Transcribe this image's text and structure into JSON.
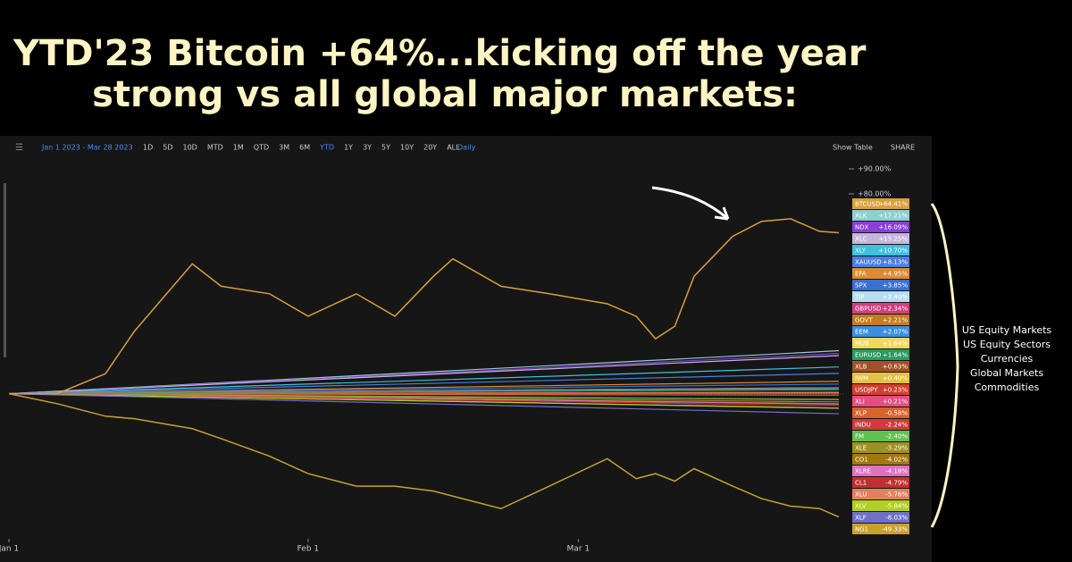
{
  "header": {
    "title_line1": "YTD'23 Bitcoin +64%...kicking off the year",
    "title_line2": "strong vs all global major markets:"
  },
  "toolbar": {
    "range": "Jan 1 2023 - Mar 28 2023",
    "periods": [
      "1D",
      "5D",
      "10D",
      "MTD",
      "1M",
      "QTD",
      "3M",
      "6M",
      "YTD",
      "1Y",
      "3Y",
      "5Y",
      "10Y",
      "20Y",
      "ALL"
    ],
    "interval": "Daily",
    "show_table": "Show Table",
    "share": "SHARE"
  },
  "groups": [
    "US Equity Markets",
    "US Equity Sectors",
    "Currencies",
    "Global Markets",
    "Commodities"
  ],
  "chart_data": {
    "type": "line",
    "legend": "right",
    "x": [
      0,
      5,
      10,
      13,
      19,
      22,
      27,
      31,
      36,
      40,
      44,
      46,
      51,
      56,
      62,
      65,
      67,
      69,
      71,
      75,
      78,
      81,
      84,
      86
    ],
    "xlim": [
      0,
      86
    ],
    "xticks": [
      {
        "value": 0,
        "label": "Jan 1"
      },
      {
        "value": 31,
        "label": "Feb 1"
      },
      {
        "value": 59,
        "label": "Mar 1"
      }
    ],
    "ylim": [
      -57,
      95
    ],
    "yticks": [
      {
        "value": 80,
        "label": "+80.00%"
      },
      {
        "value": 90,
        "label": "+90.00%"
      }
    ],
    "series": [
      {
        "name": "BTCUSD",
        "color": "#d9a038",
        "value": 64.41,
        "value_label": "+64.41%",
        "values": [
          0,
          0,
          8,
          25,
          52,
          43,
          40,
          31,
          40,
          31,
          47,
          54,
          43,
          40,
          36,
          31,
          22,
          27,
          47,
          63,
          69,
          70,
          65,
          64.41
        ]
      },
      {
        "name": "XLK",
        "color": "#8ecfd0",
        "value": 17.21,
        "value_label": "+17.21%"
      },
      {
        "name": "NDX",
        "color": "#8a3fd6",
        "value": 16.09,
        "value_label": "+16.09%"
      },
      {
        "name": "XLC",
        "color": "#c6b4e0",
        "value": 15.25,
        "value_label": "+15.25%"
      },
      {
        "name": "XLY",
        "color": "#3fc0e0",
        "value": 10.7,
        "value_label": "+10.70%"
      },
      {
        "name": "XAUUSD",
        "color": "#4a7fe0",
        "value": 8.13,
        "value_label": "+8.13%"
      },
      {
        "name": "EFA",
        "color": "#e08a30",
        "value": 4.95,
        "value_label": "+4.95%"
      },
      {
        "name": "SPX",
        "color": "#3a70d0",
        "value": 3.85,
        "value_label": "+3.85%"
      },
      {
        "name": "TIP",
        "color": "#b8dcf0",
        "value": 2.4,
        "value_label": "+2.40%"
      },
      {
        "name": "GBPUSD",
        "color": "#d04080",
        "value": 2.34,
        "value_label": "+2.34%"
      },
      {
        "name": "GOVT",
        "color": "#c87a20",
        "value": 2.21,
        "value_label": "+2.21%"
      },
      {
        "name": "EEM",
        "color": "#3a90e0",
        "value": 2.07,
        "value_label": "+2.07%"
      },
      {
        "name": "MUB",
        "color": "#f0d860",
        "value": 1.64,
        "value_label": "+1.64%"
      },
      {
        "name": "EURUSD",
        "color": "#2a9a60",
        "value": 1.64,
        "value_label": "+1.64%"
      },
      {
        "name": "XLB",
        "color": "#a0502a",
        "value": 0.63,
        "value_label": "+0.63%"
      },
      {
        "name": "IWM",
        "color": "#e8c040",
        "value": 0.4,
        "value_label": "+0.40%"
      },
      {
        "name": "USDJPY",
        "color": "#d04030",
        "value": 0.23,
        "value_label": "+0.23%"
      },
      {
        "name": "XLI",
        "color": "#e05080",
        "value": 0.21,
        "value_label": "+0.21%"
      },
      {
        "name": "XLP",
        "color": "#d8642a",
        "value": -0.58,
        "value_label": "-0.58%"
      },
      {
        "name": "INDU",
        "color": "#d03a3a",
        "value": -2.24,
        "value_label": "-2.24%"
      },
      {
        "name": "FM",
        "color": "#60c050",
        "value": -2.4,
        "value_label": "-2.40%"
      },
      {
        "name": "XLE",
        "color": "#a09020",
        "value": -3.29,
        "value_label": "-3.29%"
      },
      {
        "name": "CO1",
        "color": "#a07810",
        "value": -4.02,
        "value_label": "-4.02%"
      },
      {
        "name": "XLRE",
        "color": "#e070c0",
        "value": -4.18,
        "value_label": "-4.18%"
      },
      {
        "name": "CL1",
        "color": "#c03030",
        "value": -4.79,
        "value_label": "-4.79%"
      },
      {
        "name": "XLU",
        "color": "#e08060",
        "value": -5.76,
        "value_label": "-5.76%"
      },
      {
        "name": "XLV",
        "color": "#b0d020",
        "value": -5.84,
        "value_label": "-5.84%"
      },
      {
        "name": "XLF",
        "color": "#7070c8",
        "value": -8.03,
        "value_label": "-8.03%"
      },
      {
        "name": "NG1",
        "color": "#c8a030",
        "value": -49.33,
        "value_label": "-49.33%",
        "values": [
          0,
          -4,
          -9,
          -10,
          -14,
          -18,
          -25,
          -32,
          -37,
          -37,
          -39,
          -41,
          -46,
          -37,
          -26,
          -34,
          -32,
          -35,
          -30,
          -37,
          -42,
          -45,
          -46,
          -49.33
        ]
      }
    ]
  }
}
